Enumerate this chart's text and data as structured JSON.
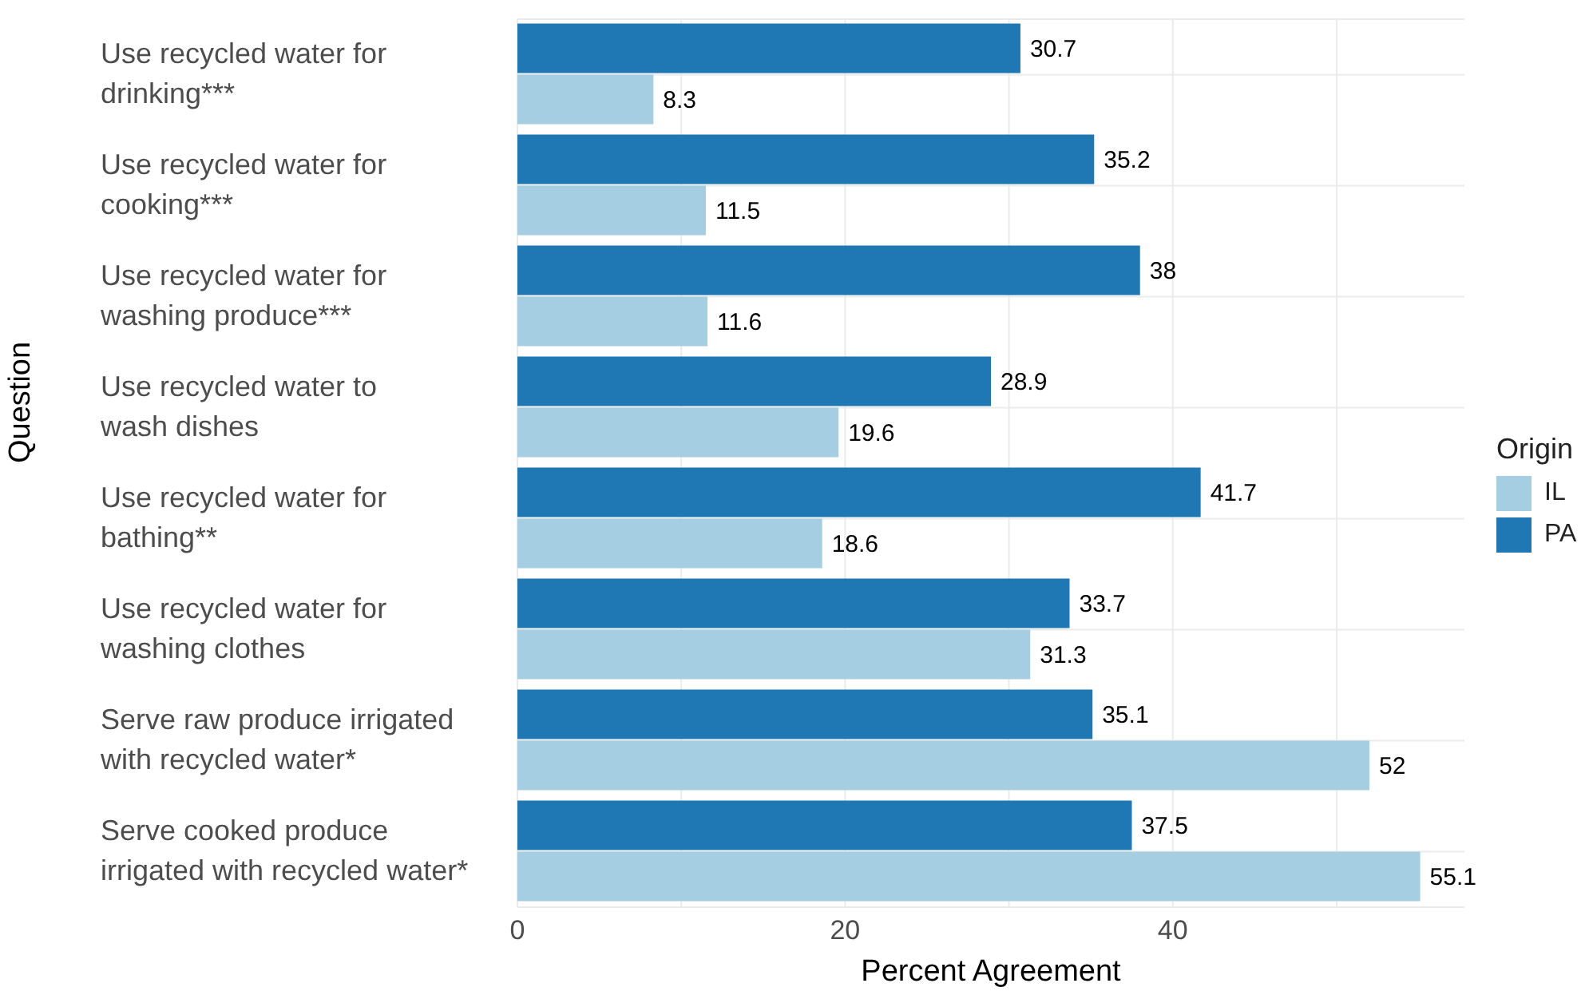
{
  "chart_data": {
    "type": "bar",
    "orientation": "horizontal",
    "xlabel": "Percent Agreement",
    "ylabel": "Question",
    "legend_title": "Origin",
    "legend": "right",
    "grid": true,
    "data_labels": true,
    "categories": [
      "Use recycled water for\ndrinking***",
      "Use recycled water for\ncooking***",
      "Use recycled water for\nwashing produce***",
      "Use recycled water to\nwash dishes",
      "Use recycled water for\nbathing**",
      "Use recycled water for\nwashing clothes",
      "Serve raw produce irrigated\nwith recycled water*",
      "Serve cooked produce\nirrigated with recycled water*"
    ],
    "series": [
      {
        "name": "IL",
        "color": "#a6cee3",
        "values": [
          8.3,
          11.5,
          11.6,
          19.6,
          18.6,
          31.3,
          52,
          55.1
        ]
      },
      {
        "name": "PA",
        "color": "#1f78b4",
        "values": [
          30.7,
          35.2,
          38,
          28.9,
          41.7,
          33.7,
          35.1,
          37.5
        ]
      }
    ],
    "xlim": [
      0,
      57.8
    ],
    "xticks": [
      0,
      20,
      40
    ]
  }
}
